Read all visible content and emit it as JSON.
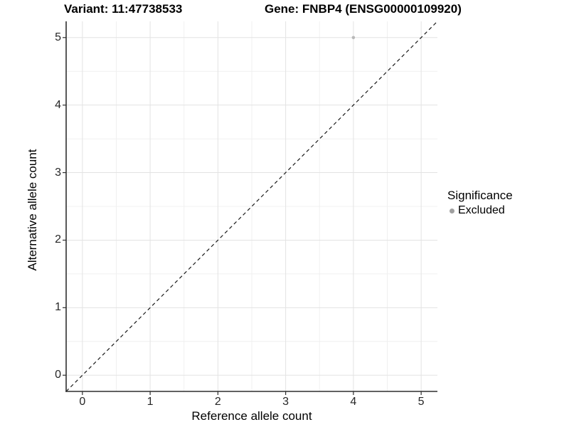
{
  "header": {
    "variant_title": "Variant: 11:47738533",
    "gene_title": "Gene: FNBP4 (ENSG00000109920)"
  },
  "chart_data": {
    "type": "scatter",
    "title_variant": "Variant: 11:47738533",
    "title_gene": "Gene: FNBP4 (ENSG00000109920)",
    "xlabel": "Reference allele count",
    "ylabel": "Alternative allele count",
    "xlim": [
      -0.24,
      5.24
    ],
    "ylim": [
      -0.24,
      5.24
    ],
    "x_ticks": [
      0,
      1,
      2,
      3,
      4,
      5
    ],
    "y_ticks": [
      0,
      1,
      2,
      3,
      4,
      5
    ],
    "grid": true,
    "identity_line": {
      "slope": 1,
      "intercept": 0,
      "style": "dashed",
      "color": "#1a1a1a"
    },
    "series": [
      {
        "name": "Excluded",
        "color": "#b9b9b9",
        "points": [
          {
            "x": 4,
            "y": 5
          }
        ]
      }
    ],
    "legend": {
      "title": "Significance",
      "position": "right",
      "items": [
        {
          "label": "Excluded",
          "color": "#a0a0a0",
          "marker": "circle"
        }
      ]
    },
    "colors": {
      "grid_major": "#e3e3e3",
      "grid_minor": "#f0f0f0",
      "axis_line": "#2e2e2e",
      "tick_text": "#262626",
      "title_text": "#000000"
    }
  }
}
